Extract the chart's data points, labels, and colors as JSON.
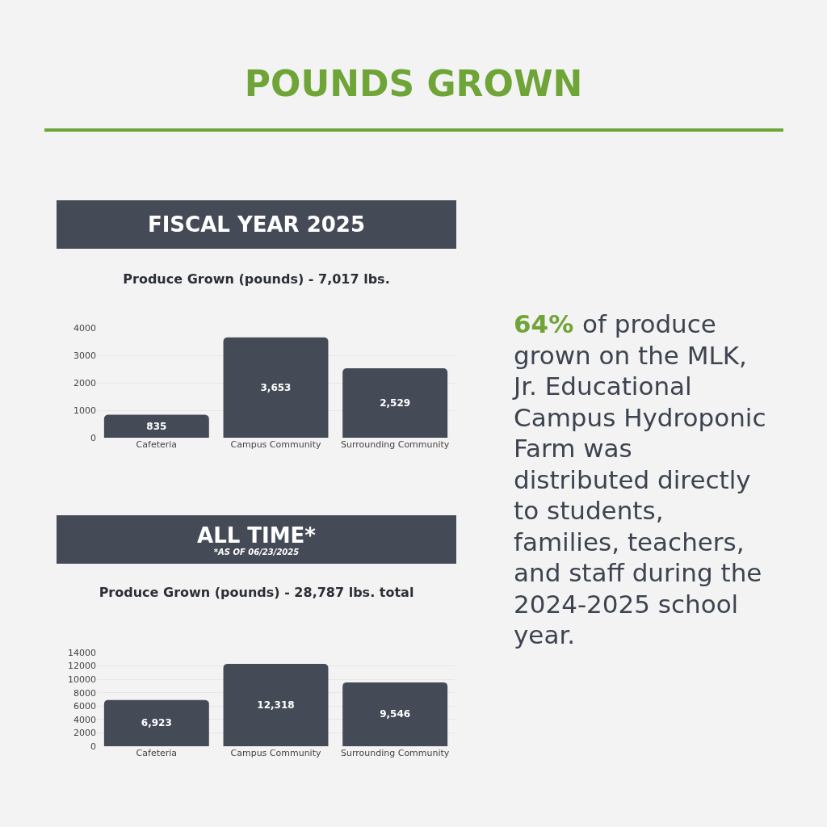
{
  "chart_data": [
    {
      "type": "other",
      "title": "POUNDS GROWN",
      "color": "#6fa437",
      "annotations": [
        "64%",
        "of produce grown on the MLK, Jr. Educational Campus Hydroponic Farm was distributed directly to students, families, teachers, and staff during the 2024-2025 school year."
      ]
    },
    {
      "type": "bar",
      "title": "FISCAL YEAR 2025",
      "annotations": [
        "Produce Grown (pounds) - 7,017 lbs."
      ],
      "categories": [
        "Cafeteria",
        "Campus Community",
        "Surrounding Community"
      ],
      "values": [
        835,
        3653,
        2529
      ],
      "color": "#454b56",
      "ylim": [
        0,
        4000
      ],
      "yticks": [
        0,
        1000,
        2000,
        3000,
        4000
      ],
      "grid": "y",
      "value_labels": [
        "835",
        "3,653",
        "2,529"
      ]
    },
    {
      "type": "bar",
      "title": "ALL TIME*",
      "subtitle": "*AS OF 06/23/2025",
      "annotations": [
        "Produce Grown (pounds) - 28,787 lbs. total"
      ],
      "categories": [
        "Cafeteria",
        "Campus Community",
        "Surrounding Community"
      ],
      "values": [
        6923,
        12318,
        9546
      ],
      "color": "#454b56",
      "ylim": [
        0,
        14000
      ],
      "yticks": [
        0,
        2000,
        4000,
        6000,
        8000,
        10000,
        12000,
        14000
      ],
      "grid": "y",
      "value_labels": [
        "6,923",
        "12,318",
        "9,546"
      ]
    }
  ]
}
